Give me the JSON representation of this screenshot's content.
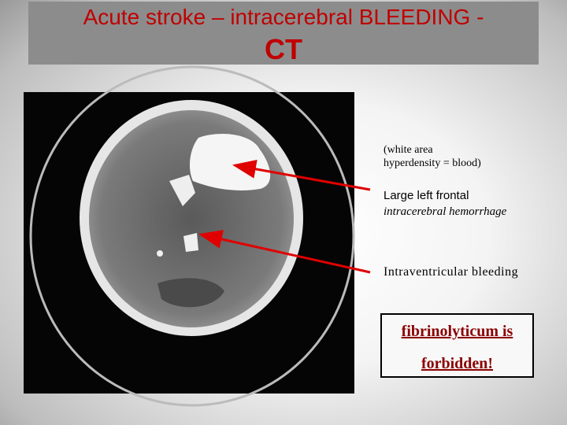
{
  "header": {
    "title": [
      "Acute stroke – intracerebral BLEEDING -",
      "CT"
    ]
  },
  "annotations": [
    [
      "(white area",
      "hyperdensity = blood)"
    ],
    [
      "Large left frontal",
      "intracerebral hemorrhage"
    ],
    [
      "Intraventricular bleeding"
    ]
  ],
  "warning": [
    "fibrinolyticum is",
    "forbidden!"
  ]
}
